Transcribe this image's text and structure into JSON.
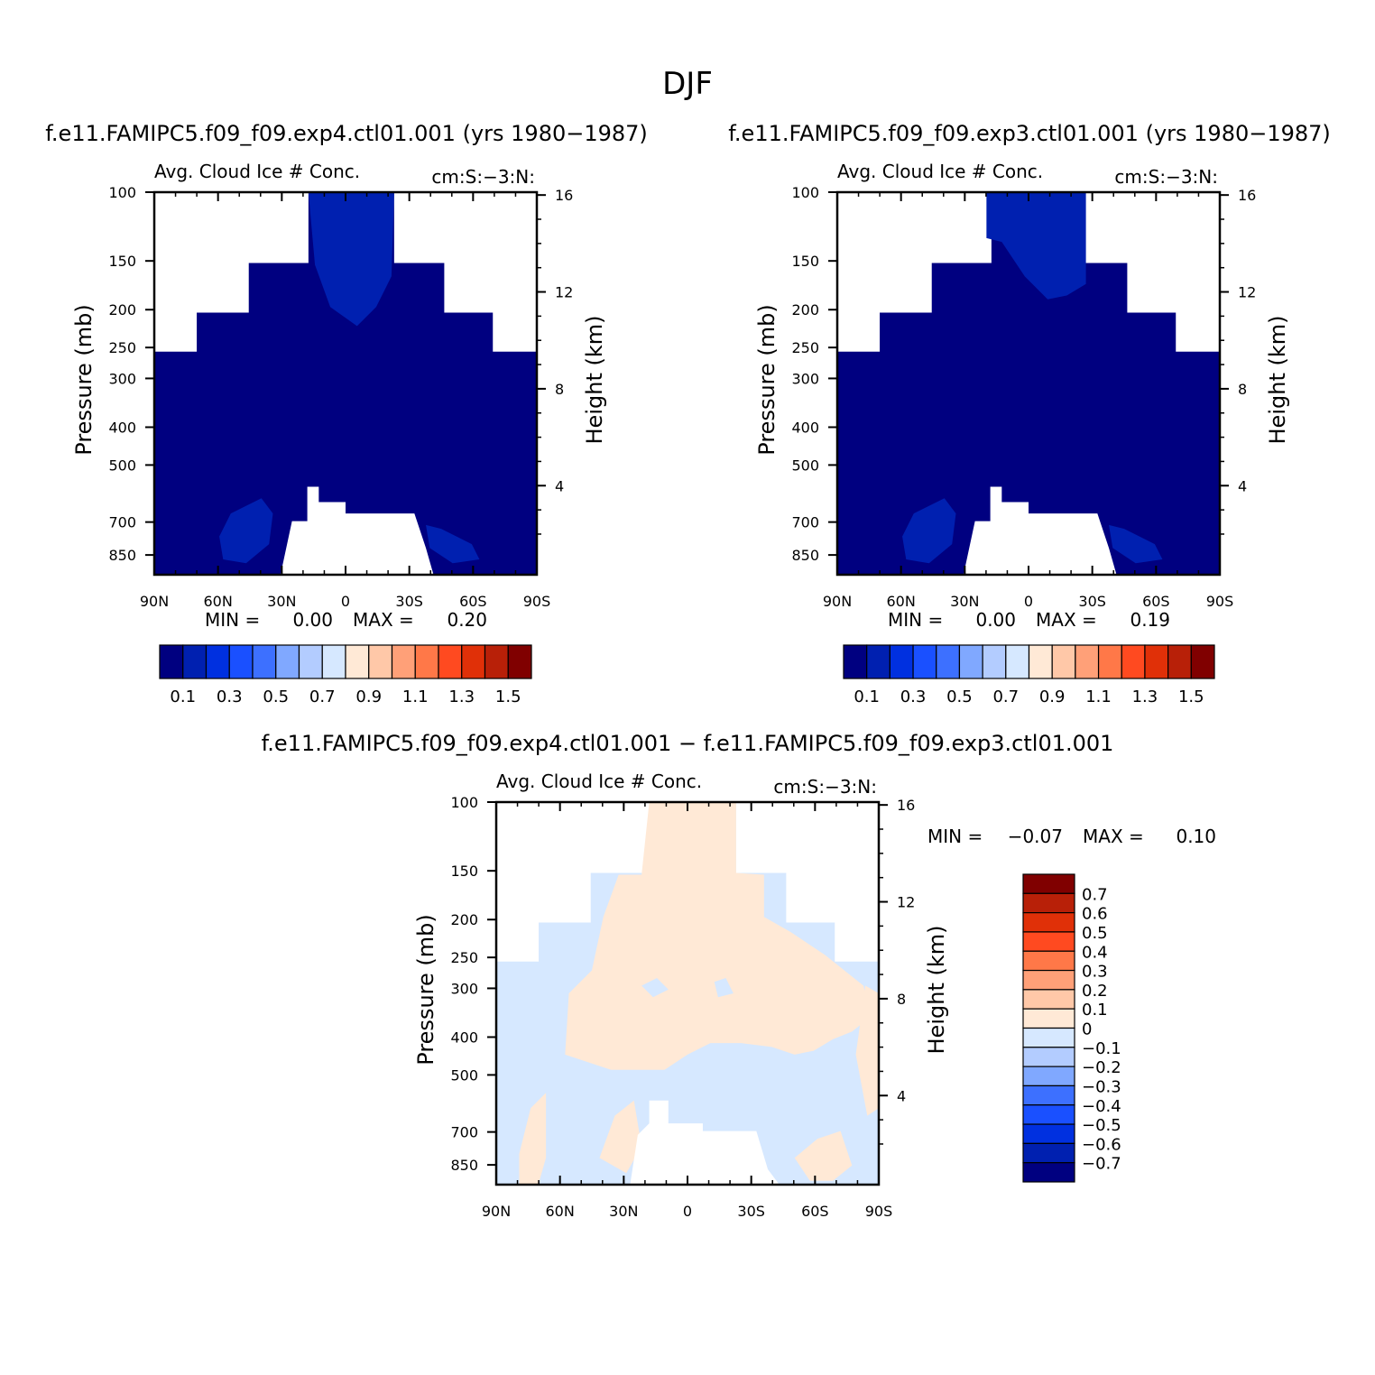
{
  "figure": {
    "title": "DJF"
  },
  "colors": {
    "seq_palette": [
      "#000080",
      "#0020b0",
      "#0030e0",
      "#1a50ff",
      "#3d70ff",
      "#80a8ff",
      "#b3ccff",
      "#d6e8ff",
      "#ffe9d6",
      "#ffc8a8",
      "#ffa078",
      "#ff7848",
      "#ff4a20",
      "#e03008",
      "#b82008",
      "#800000"
    ],
    "diff_palette": [
      "#000080",
      "#0020b0",
      "#0030e0",
      "#1a50ff",
      "#3d70ff",
      "#80a8ff",
      "#b3ccff",
      "#d6e8ff",
      "#ffe9d6",
      "#ffc8a8",
      "#ffa078",
      "#ff7848",
      "#ff4a20",
      "#e03008",
      "#b82008",
      "#800000"
    ],
    "base_fill": "#000080",
    "core_fill": "#0020b0",
    "diff_neg": "#d6e8ff",
    "diff_pos": "#ffe9d6"
  },
  "chart_data": [
    {
      "type": "heatmap",
      "id": "exp4",
      "case_title": "f.e11.FAMIPC5.f09_f09.exp4.ctl01.001 (yrs 1980−1987)",
      "left_string": "Avg. Cloud Ice # Conc.",
      "right_string": "cm:S:−3:N:",
      "ylabel": "Pressure (mb)",
      "y2label": "Height (km)",
      "x_ticks": [
        "90N",
        "60N",
        "30N",
        "0",
        "30S",
        "60S",
        "90S"
      ],
      "y_ticks": [
        "100",
        "150",
        "200",
        "250",
        "300",
        "400",
        "500",
        "700",
        "850"
      ],
      "y2_ticks": [
        "16",
        "12",
        "8",
        "4"
      ],
      "stats": {
        "min_label": "MIN =",
        "min": "0.00",
        "max_label": "MAX =",
        "max": "0.20"
      },
      "colorbar_labels": [
        "0.1",
        "0.3",
        "0.5",
        "0.7",
        "0.9",
        "1.1",
        "1.3",
        "1.5"
      ],
      "colorbar_orientation": "horizontal"
    },
    {
      "type": "heatmap",
      "id": "exp3",
      "case_title": "f.e11.FAMIPC5.f09_f09.exp3.ctl01.001 (yrs 1980−1987)",
      "left_string": "Avg. Cloud Ice # Conc.",
      "right_string": "cm:S:−3:N:",
      "ylabel": "Pressure (mb)",
      "y2label": "Height (km)",
      "x_ticks": [
        "90N",
        "60N",
        "30N",
        "0",
        "30S",
        "60S",
        "90S"
      ],
      "y_ticks": [
        "100",
        "150",
        "200",
        "250",
        "300",
        "400",
        "500",
        "700",
        "850"
      ],
      "y2_ticks": [
        "16",
        "12",
        "8",
        "4"
      ],
      "stats": {
        "min_label": "MIN =",
        "min": "0.00",
        "max_label": "MAX =",
        "max": "0.19"
      },
      "colorbar_labels": [
        "0.1",
        "0.3",
        "0.5",
        "0.7",
        "0.9",
        "1.1",
        "1.3",
        "1.5"
      ],
      "colorbar_orientation": "horizontal"
    },
    {
      "type": "heatmap",
      "id": "diff",
      "case_title": "f.e11.FAMIPC5.f09_f09.exp4.ctl01.001 − f.e11.FAMIPC5.f09_f09.exp3.ctl01.001",
      "left_string": "Avg. Cloud Ice # Conc.",
      "right_string": "cm:S:−3:N:",
      "ylabel": "Pressure (mb)",
      "y2label": "Height (km)",
      "x_ticks": [
        "90N",
        "60N",
        "30N",
        "0",
        "30S",
        "60S",
        "90S"
      ],
      "y_ticks": [
        "100",
        "150",
        "200",
        "250",
        "300",
        "400",
        "500",
        "700",
        "850"
      ],
      "y2_ticks": [
        "16",
        "12",
        "8",
        "4"
      ],
      "stats": {
        "min_label": "MIN =",
        "min": "−0.07",
        "max_label": "MAX =",
        "max": "0.10"
      },
      "colorbar_labels": [
        "0.7",
        "0.6",
        "0.5",
        "0.4",
        "0.3",
        "0.2",
        "0.1",
        "0",
        "−0.1",
        "−0.2",
        "−0.3",
        "−0.4",
        "−0.5",
        "−0.6",
        "−0.7"
      ],
      "colorbar_orientation": "vertical"
    }
  ]
}
